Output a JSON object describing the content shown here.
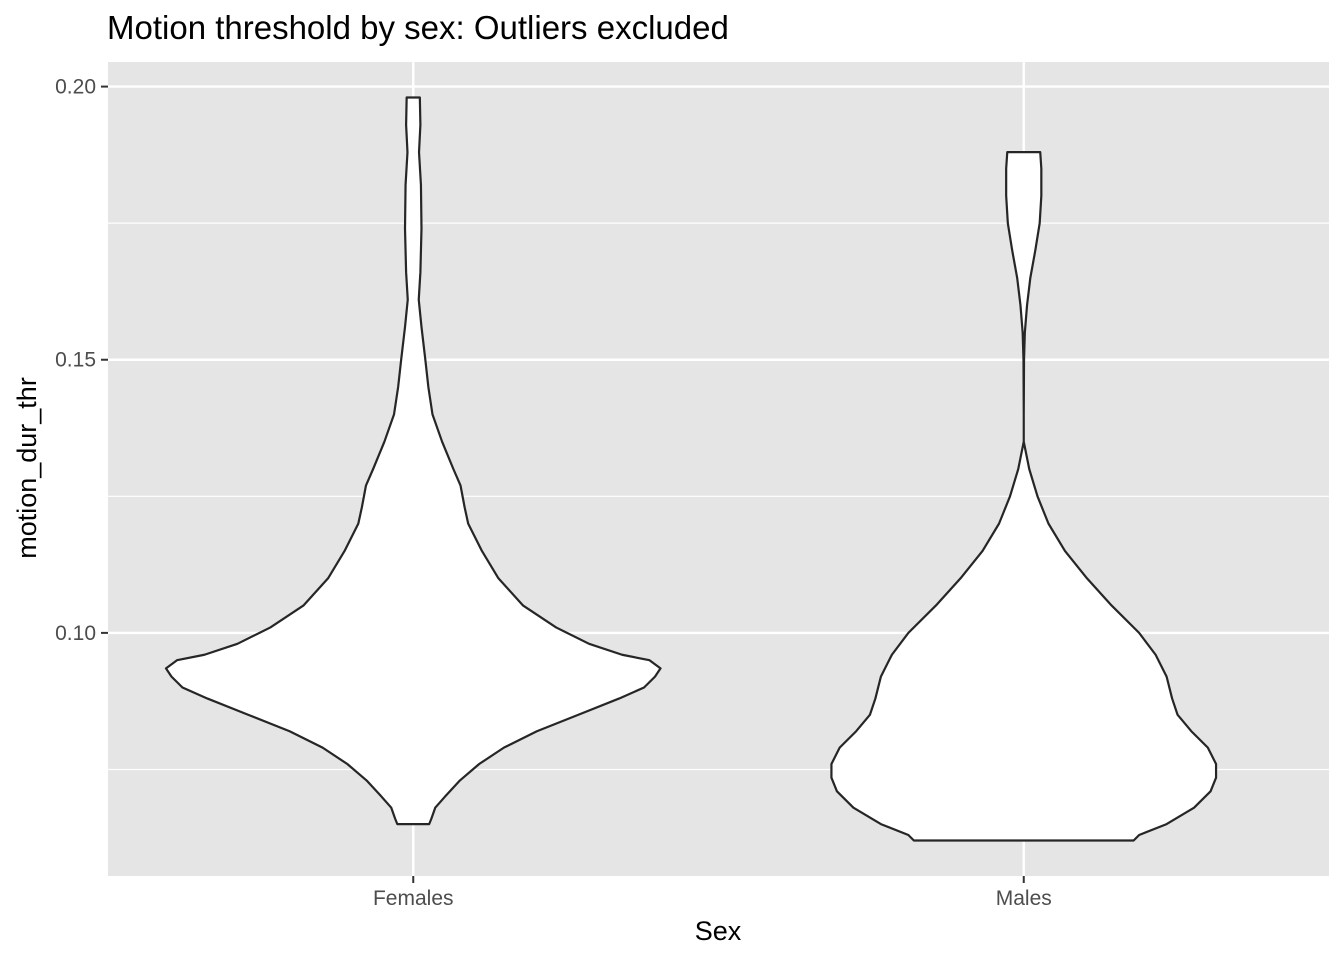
{
  "chart_data": {
    "type": "violin",
    "title": "Motion threshold by sex: Outliers excluded",
    "xlabel": "Sex",
    "ylabel": "motion_dur_thr",
    "categories": [
      "Females",
      "Males"
    ],
    "ylim": [
      0.0555,
      0.2045
    ],
    "y_ticks": [
      0.1,
      0.15,
      0.2
    ],
    "y_tick_labels": [
      "0.10",
      "0.15",
      "0.20"
    ],
    "grid": true,
    "panel_background": "#e5e5e5",
    "grid_color": "#ffffff",
    "violin_fill": "#ffffff",
    "violin_outline": "#262626",
    "max_halfwidth_fraction": 0.45,
    "violins": [
      {
        "category": "Females",
        "y_min": 0.065,
        "y_max": 0.198,
        "profile": [
          [
            0.198,
            0.024
          ],
          [
            0.193,
            0.026
          ],
          [
            0.188,
            0.021
          ],
          [
            0.182,
            0.028
          ],
          [
            0.174,
            0.03
          ],
          [
            0.166,
            0.026
          ],
          [
            0.161,
            0.02
          ],
          [
            0.156,
            0.03
          ],
          [
            0.15,
            0.044
          ],
          [
            0.145,
            0.055
          ],
          [
            0.14,
            0.07
          ],
          [
            0.135,
            0.105
          ],
          [
            0.13,
            0.146
          ],
          [
            0.127,
            0.172
          ],
          [
            0.123,
            0.187
          ],
          [
            0.12,
            0.2
          ],
          [
            0.115,
            0.25
          ],
          [
            0.11,
            0.31
          ],
          [
            0.105,
            0.4
          ],
          [
            0.101,
            0.52
          ],
          [
            0.098,
            0.64
          ],
          [
            0.096,
            0.76
          ],
          [
            0.095,
            0.86
          ],
          [
            0.0935,
            0.9
          ],
          [
            0.092,
            0.88
          ],
          [
            0.09,
            0.84
          ],
          [
            0.088,
            0.75
          ],
          [
            0.085,
            0.6
          ],
          [
            0.082,
            0.45
          ],
          [
            0.079,
            0.33
          ],
          [
            0.076,
            0.24
          ],
          [
            0.073,
            0.17
          ],
          [
            0.07,
            0.115
          ],
          [
            0.068,
            0.08
          ],
          [
            0.066,
            0.066
          ],
          [
            0.065,
            0.058
          ]
        ]
      },
      {
        "category": "Males",
        "y_min": 0.062,
        "y_max": 0.188,
        "profile": [
          [
            0.188,
            0.06
          ],
          [
            0.185,
            0.064
          ],
          [
            0.18,
            0.064
          ],
          [
            0.175,
            0.058
          ],
          [
            0.17,
            0.042
          ],
          [
            0.165,
            0.024
          ],
          [
            0.16,
            0.012
          ],
          [
            0.155,
            0.004
          ],
          [
            0.15,
            0.001
          ],
          [
            0.14,
            0.0
          ],
          [
            0.135,
            0.0
          ],
          [
            0.13,
            0.02
          ],
          [
            0.125,
            0.05
          ],
          [
            0.12,
            0.09
          ],
          [
            0.115,
            0.15
          ],
          [
            0.11,
            0.23
          ],
          [
            0.105,
            0.32
          ],
          [
            0.1,
            0.42
          ],
          [
            0.096,
            0.48
          ],
          [
            0.092,
            0.52
          ],
          [
            0.088,
            0.54
          ],
          [
            0.085,
            0.56
          ],
          [
            0.082,
            0.61
          ],
          [
            0.079,
            0.67
          ],
          [
            0.076,
            0.7
          ],
          [
            0.0735,
            0.7
          ],
          [
            0.071,
            0.68
          ],
          [
            0.068,
            0.62
          ],
          [
            0.065,
            0.52
          ],
          [
            0.063,
            0.42
          ],
          [
            0.062,
            0.4
          ]
        ]
      }
    ]
  }
}
